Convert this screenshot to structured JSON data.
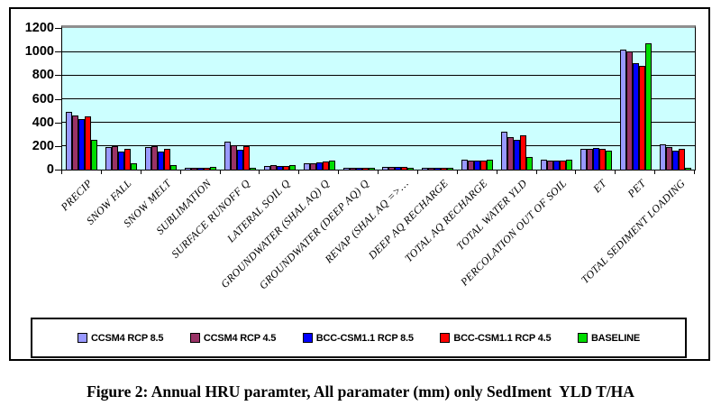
{
  "figure": {
    "caption": "Figure 2: Annual HRU paramter, All paramater (mm) only SedIment  YLD T/HA"
  },
  "chart_data": {
    "type": "bar",
    "title": "",
    "xlabel": "",
    "ylabel": "",
    "ylim": [
      0,
      1200
    ],
    "yticks": [
      0,
      200,
      400,
      600,
      800,
      1000,
      1200
    ],
    "grid": true,
    "legend_position": "bottom",
    "plot_background": "#CCFFFF",
    "categories": [
      "PRECIP",
      "SNOW FALL",
      "SNOW MELT",
      "SUBLIMATION",
      "SURFACE RUNOFF Q",
      "LATERAL SOIL Q",
      "GROUNDWATER (SHAL AQ) Q",
      "GROUNDWATER (DEEP AQ) Q",
      "REVAP (SHAL AQ =>…",
      "DEEP AQ RECHARGE",
      "TOTAL AQ RECHARGE",
      "TOTAL WATER YLD",
      "PERCOLATION OUT OF SOIL",
      "ET",
      "PET",
      "TOTAL SEDIMENT LOADING"
    ],
    "series": [
      {
        "name": "CCSM4 RCP 8.5",
        "color": "#9999FF",
        "values": [
          485,
          180,
          183,
          3,
          228,
          26,
          46,
          3,
          14,
          3,
          75,
          312,
          75,
          165,
          1010,
          205
        ]
      },
      {
        "name": "CCSM4 RCP 4.5",
        "color": "#993366",
        "values": [
          450,
          188,
          188,
          3,
          195,
          27,
          44,
          3,
          15,
          3,
          72,
          270,
          72,
          170,
          990,
          180
        ]
      },
      {
        "name": "BCC-CSM1.1 RCP 8.5",
        "color": "#0000FF",
        "values": [
          420,
          148,
          142,
          3,
          160,
          25,
          54,
          3,
          13,
          3,
          70,
          243,
          70,
          172,
          895,
          150
        ]
      },
      {
        "name": "BCC-CSM1.1 RCP 4.5",
        "color": "#FF0000",
        "values": [
          445,
          165,
          165,
          4,
          190,
          26,
          62,
          3,
          14,
          3,
          72,
          280,
          72,
          170,
          870,
          165
        ]
      },
      {
        "name": "BASELINE",
        "color": "#00DC00",
        "values": [
          248,
          48,
          28,
          18,
          6,
          28,
          68,
          3,
          8,
          3,
          73,
          100,
          73,
          152,
          1062,
          5
        ]
      }
    ]
  }
}
